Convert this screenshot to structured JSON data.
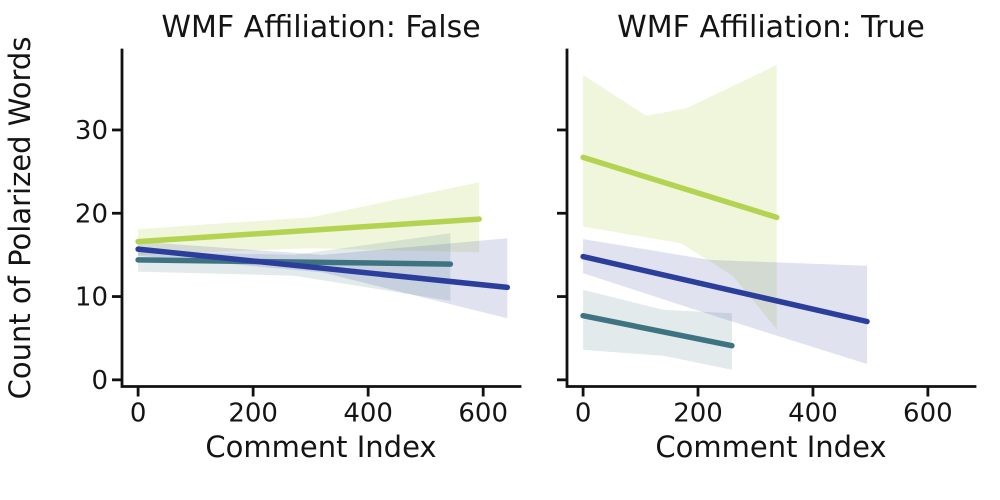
{
  "figure": {
    "background": "#ffffff",
    "text_color": "#141414",
    "axis_color": "#111111"
  },
  "chart_data": [
    {
      "type": "line",
      "panel": "left",
      "title": "WMF Affiliation: False",
      "xlabel": "Comment Index",
      "ylabel": "Count of Polarized Words",
      "xlim": [
        -28,
        664
      ],
      "ylim": [
        -0.8,
        39.6
      ],
      "xticks": [
        0,
        200,
        400,
        600
      ],
      "yticks": [
        0,
        10,
        20,
        30
      ],
      "show_ytick_labels": true,
      "grid": false,
      "legend": "none",
      "series": [
        {
          "name": "yellow-green",
          "color": "#b3d351",
          "band_alpha": 0.2,
          "line": [
            [
              0,
              16.6
            ],
            [
              593,
              19.3
            ]
          ],
          "band_upper": [
            [
              0,
              18.1
            ],
            [
              300,
              19.5
            ],
            [
              593,
              23.7
            ]
          ],
          "band_lower": [
            [
              0,
              15.0
            ],
            [
              300,
              15.8
            ],
            [
              593,
              15.3
            ]
          ]
        },
        {
          "name": "teal",
          "color": "#3e7482",
          "band_alpha": 0.15,
          "line": [
            [
              0,
              14.4
            ],
            [
              543,
              13.9
            ]
          ],
          "band_upper": [
            [
              0,
              15.4
            ],
            [
              272,
              15.0
            ],
            [
              543,
              17.6
            ]
          ],
          "band_lower": [
            [
              0,
              13.0
            ],
            [
              272,
              12.5
            ],
            [
              543,
              9.5
            ]
          ]
        },
        {
          "name": "navy-blue",
          "color": "#2c3e9b",
          "band_alpha": 0.15,
          "line": [
            [
              0,
              15.7
            ],
            [
              642,
              11.1
            ]
          ],
          "band_upper": [
            [
              0,
              16.6
            ],
            [
              320,
              15.0
            ],
            [
              642,
              17.0
            ]
          ],
          "band_lower": [
            [
              0,
              14.9
            ],
            [
              320,
              12.9
            ],
            [
              642,
              7.4
            ]
          ]
        }
      ]
    },
    {
      "type": "line",
      "panel": "right",
      "title": "WMF Affiliation: True",
      "xlabel": "Comment Index",
      "ylabel": "",
      "xlim": [
        -28,
        682
      ],
      "ylim": [
        -0.8,
        39.6
      ],
      "xticks": [
        0,
        200,
        400,
        600
      ],
      "yticks": [
        0,
        10,
        20,
        30
      ],
      "show_ytick_labels": false,
      "grid": false,
      "legend": "none",
      "series": [
        {
          "name": "yellow-green",
          "color": "#b3d351",
          "band_alpha": 0.2,
          "line": [
            [
              0,
              26.7
            ],
            [
              337,
              19.5
            ]
          ],
          "band_upper": [
            [
              0,
              36.6
            ],
            [
              110,
              31.7
            ],
            [
              180,
              32.6
            ],
            [
              337,
              37.8
            ]
          ],
          "band_lower": [
            [
              0,
              18.4
            ],
            [
              170,
              16.4
            ],
            [
              260,
              12.5
            ],
            [
              337,
              6.1
            ]
          ]
        },
        {
          "name": "teal",
          "color": "#3e7482",
          "band_alpha": 0.15,
          "line": [
            [
              0,
              7.7
            ],
            [
              259,
              4.1
            ]
          ],
          "band_upper": [
            [
              0,
              10.8
            ],
            [
              140,
              8.4
            ],
            [
              259,
              8.0
            ]
          ],
          "band_lower": [
            [
              0,
              3.6
            ],
            [
              140,
              2.9
            ],
            [
              259,
              1.2
            ]
          ]
        },
        {
          "name": "navy-blue",
          "color": "#2c3e9b",
          "band_alpha": 0.15,
          "line": [
            [
              0,
              14.8
            ],
            [
              494,
              7.0
            ]
          ],
          "band_upper": [
            [
              0,
              16.9
            ],
            [
              220,
              14.4
            ],
            [
              494,
              13.7
            ]
          ],
          "band_lower": [
            [
              0,
              12.8
            ],
            [
              250,
              7.2
            ],
            [
              494,
              1.9
            ]
          ]
        }
      ]
    }
  ]
}
